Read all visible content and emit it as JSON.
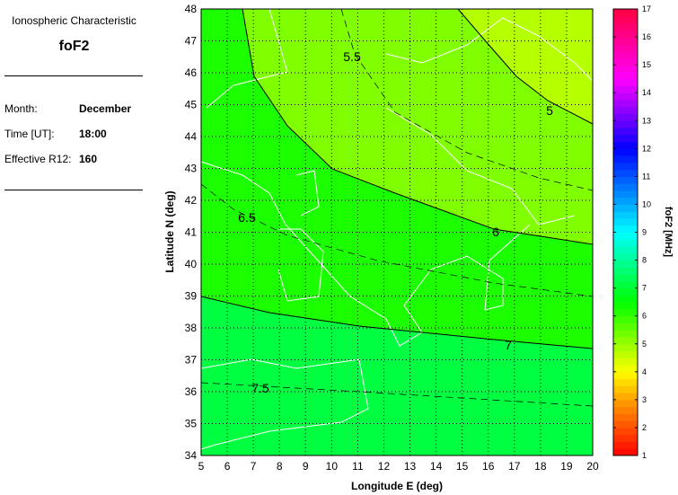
{
  "panel": {
    "subtitle": "Ionospheric Characteristic",
    "title": "foF2",
    "fields": [
      {
        "label": "Month:",
        "value": "December"
      },
      {
        "label": "Time [UT]:",
        "value": "18:00"
      },
      {
        "label": "Effective R12:",
        "value": "160"
      }
    ]
  },
  "map": {
    "xlabel": "Longitude E (deg)",
    "ylabel": "Latitude N (deg)",
    "xlim": [
      5,
      20
    ],
    "ylim": [
      34,
      48
    ],
    "x_ticks": [
      "5",
      "6",
      "7",
      "8",
      "9",
      "10",
      "11",
      "12",
      "13",
      "14",
      "15",
      "16",
      "17",
      "18",
      "19",
      "20"
    ],
    "y_ticks": [
      "34",
      "35",
      "36",
      "37",
      "38",
      "39",
      "40",
      "41",
      "42",
      "43",
      "44",
      "45",
      "46",
      "47",
      "48"
    ],
    "grid": "dotted",
    "contours": [
      {
        "level": "5",
        "style": "solid"
      },
      {
        "level": "5.5",
        "style": "dashed"
      },
      {
        "level": "6",
        "style": "solid"
      },
      {
        "level": "6.5",
        "style": "dashed"
      },
      {
        "level": "7",
        "style": "solid"
      },
      {
        "level": "7.5",
        "style": "dashed"
      }
    ],
    "band_colors": [
      "#b4ff00",
      "#80ff00",
      "#1cff00",
      "#00ff40"
    ]
  },
  "colorbar": {
    "label": "foF2 [MHz]",
    "range": [
      1,
      17
    ],
    "ticks": [
      "1",
      "2",
      "3",
      "4",
      "5",
      "6",
      "7",
      "8",
      "9",
      "10",
      "11",
      "12",
      "13",
      "14",
      "15",
      "16",
      "17"
    ]
  }
}
